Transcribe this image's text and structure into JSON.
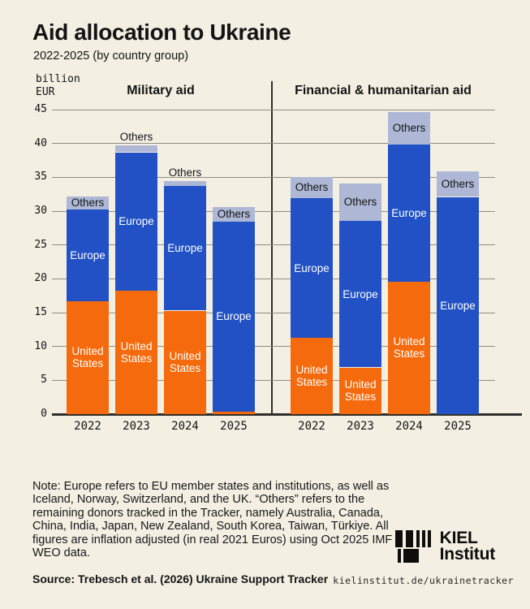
{
  "header": {
    "title": "Aid allocation to Ukraine",
    "subtitle": "2022-2025 (by country group)"
  },
  "axis_unit": "billion\nEUR",
  "note": "Note: Europe refers to EU member states and institutions, as well as Iceland, Norway, Switzerland, and the UK. “Others” refers to the remaining donors tracked in the Tracker, namely Australia, Canada, China, India, Japan, New Zealand, South Korea, Taiwan, Türkiye. All figures are inflation adjusted (in real 2021 Euros) using Oct 2025 IMF WEO data.",
  "source": "Source: Trebesch et al. (2026) Ukraine Support Tracker",
  "footer_url": "kielinstitut.de/ukrainetracker",
  "logo": {
    "line1": "KIEL",
    "line2": "Institut"
  },
  "colors": {
    "background": "#f3efe3",
    "united_states": "#f56a0d",
    "europe": "#2151c4",
    "others": "#aeb8d6",
    "gridline": "#8f8d83",
    "axis": "#2f2e2a",
    "text": "#141414"
  },
  "chart_data": {
    "type": "bar",
    "stacked": true,
    "title": "Aid allocation to Ukraine",
    "subtitle": "2022-2025 (by country group)",
    "ylabel": "billion EUR",
    "ylim": [
      0,
      45
    ],
    "yticks": [
      0,
      5,
      10,
      15,
      20,
      25,
      30,
      35,
      40,
      45
    ],
    "grid": true,
    "legend": "labels-inside-bars",
    "categories": [
      "2022",
      "2023",
      "2024",
      "2025"
    ],
    "stack_order": [
      "United States",
      "Europe",
      "Others"
    ],
    "series_colors": {
      "United States": "#f56a0d",
      "Europe": "#2151c4",
      "Others": "#aeb8d6"
    },
    "panels": [
      {
        "title": "Military aid",
        "series": [
          {
            "name": "United States",
            "values": [
              16.7,
              18.3,
              15.3,
              0.4
            ]
          },
          {
            "name": "Europe",
            "values": [
              13.5,
              20.4,
              18.4,
              28.1
            ]
          },
          {
            "name": "Others",
            "values": [
              2.0,
              1.0,
              0.8,
              2.1
            ]
          }
        ],
        "totals": [
          32.2,
          39.7,
          34.5,
          30.6
        ]
      },
      {
        "title": "Financial & humanitarian aid",
        "series": [
          {
            "name": "United States",
            "values": [
              11.3,
              6.9,
              19.6,
              0
            ]
          },
          {
            "name": "Europe",
            "values": [
              20.6,
              21.7,
              20.2,
              32.1
            ]
          },
          {
            "name": "Others",
            "values": [
              3.1,
              5.5,
              4.8,
              3.8
            ]
          }
        ],
        "totals": [
          35.0,
          34.1,
          44.6,
          35.9
        ]
      }
    ]
  }
}
